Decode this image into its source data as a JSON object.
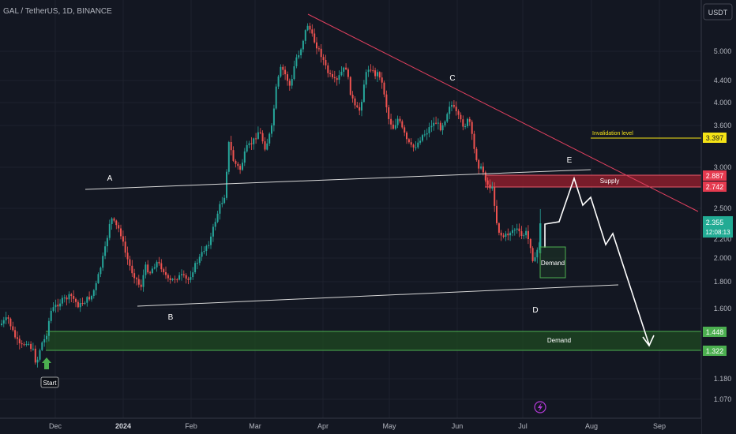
{
  "header": {
    "title": "GAL / TetherUS, 1D, BINANCE",
    "currency_button": "USDT"
  },
  "chart_data": {
    "type": "candlestick",
    "x_ticks": [
      "Dec",
      "2024",
      "Feb",
      "Mar",
      "Apr",
      "May",
      "Jun",
      "Jul",
      "Aug",
      "Sep"
    ],
    "y_ticks": [
      "5.000",
      "4.400",
      "4.000",
      "3.600",
      "3.000",
      "2.500",
      "2.200",
      "2.000",
      "1.800",
      "1.600",
      "1.180",
      "1.070"
    ],
    "ylim": [
      1.0,
      6.0
    ],
    "y_scale": "log",
    "price_labels": {
      "invalidation": "3.397",
      "supply_top": "2.887",
      "supply_bottom": "2.742",
      "current_price": "2.355",
      "countdown": "12:08:13",
      "demand_top": "1.448",
      "demand_bottom": "1.322"
    },
    "annotations": {
      "A": "A",
      "B": "B",
      "C": "C",
      "D": "D",
      "E": "E",
      "supply": "Supply",
      "demand_zone": "Demand",
      "demand_box": "Demand",
      "invalidation": "Invalidation level",
      "start": "Start"
    },
    "colors": {
      "background": "#131722",
      "up": "#26a69a",
      "down": "#ef5350",
      "trendline": "#e0405f",
      "supply_zone": "#8b1d2c",
      "demand_zone": "#1e4620",
      "invalidation": "#f5e316"
    }
  }
}
